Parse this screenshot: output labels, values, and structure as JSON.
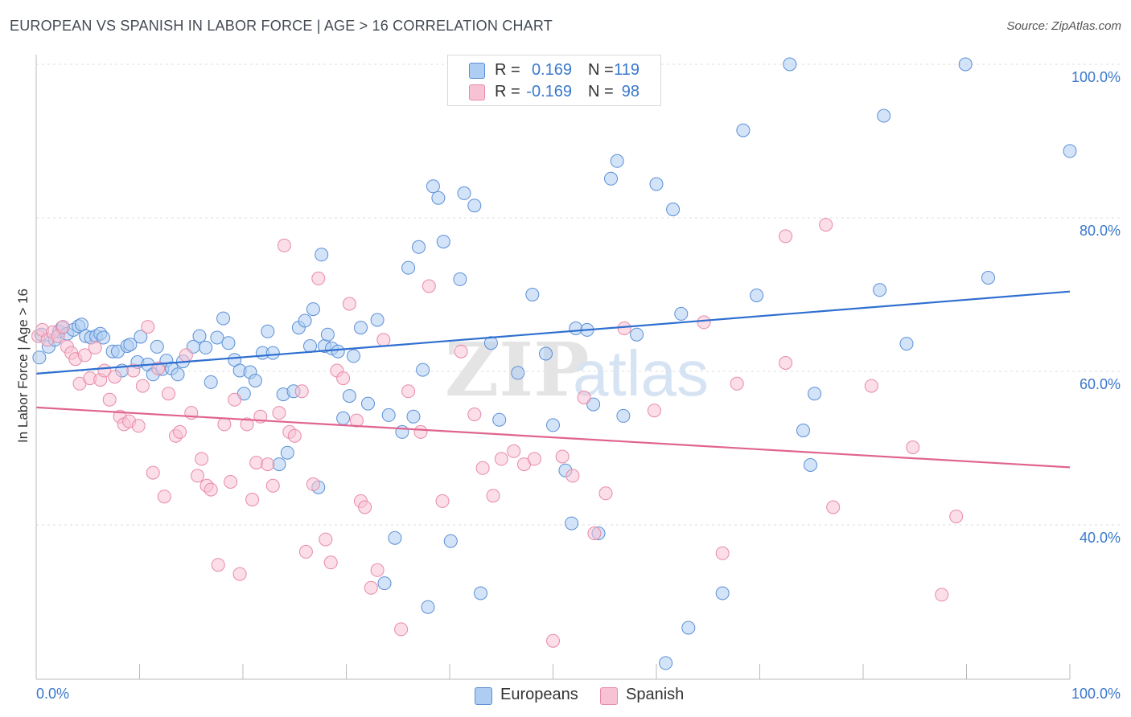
{
  "header": {
    "title": "EUROPEAN VS SPANISH IN LABOR FORCE | AGE > 16 CORRELATION CHART",
    "source": "Source: ZipAtlas.com"
  },
  "legend": {
    "europeans": {
      "r_label": "R =",
      "r_value": "0.169",
      "n_label": "N =",
      "n_value": "119"
    },
    "spanish": {
      "r_label": "R =",
      "r_value": "-0.169",
      "n_label": "N =",
      "n_value": "98"
    }
  },
  "colors": {
    "europeans_fill": "#aecdf2",
    "europeans_stroke": "#5b8fd6",
    "europeans_line": "#2f6fd0",
    "spanish_fill": "#f7c2d3",
    "spanish_stroke": "#e88aa8",
    "spanish_line": "#e0648f",
    "tick_label": "#3a78cc",
    "grid": "#dddddd"
  },
  "chart_data": {
    "type": "scatter",
    "title": "EUROPEAN VS SPANISH IN LABOR FORCE | AGE > 16 CORRELATION CHART",
    "xlabel": "",
    "ylabel": "In Labor Force | Age > 16",
    "xlim": [
      0,
      100
    ],
    "ylim": [
      20,
      102
    ],
    "x_tick_labels": [
      "0.0%",
      "100.0%"
    ],
    "y_ticks": [
      40,
      60,
      80,
      100
    ],
    "y_tick_labels": [
      "40.0%",
      "60.0%",
      "80.0%",
      "100.0%"
    ],
    "grid": true,
    "legend_position": "top-center",
    "watermark": "ZIPatlas",
    "series": [
      {
        "name": "Europeans",
        "trend": {
          "x": [
            0,
            100
          ],
          "y": [
            59.7,
            70.4
          ]
        },
        "points": [
          [
            0.3,
            61.8
          ],
          [
            0.5,
            64.8
          ],
          [
            1.2,
            63.2
          ],
          [
            1.8,
            64.1
          ],
          [
            2.2,
            65.2
          ],
          [
            2.5,
            65.7
          ],
          [
            3.0,
            64.9
          ],
          [
            3.6,
            65.4
          ],
          [
            4.1,
            65.9
          ],
          [
            4.4,
            66.1
          ],
          [
            4.8,
            64.6
          ],
          [
            5.3,
            64.4
          ],
          [
            5.8,
            64.6
          ],
          [
            6.2,
            64.9
          ],
          [
            6.5,
            64.4
          ],
          [
            7.4,
            62.6
          ],
          [
            7.9,
            62.6
          ],
          [
            8.3,
            60.1
          ],
          [
            8.8,
            63.3
          ],
          [
            9.1,
            63.5
          ],
          [
            9.8,
            61.2
          ],
          [
            10.1,
            64.5
          ],
          [
            10.8,
            60.9
          ],
          [
            11.3,
            59.6
          ],
          [
            11.7,
            63.2
          ],
          [
            12.2,
            60.3
          ],
          [
            12.6,
            61.4
          ],
          [
            13.1,
            60.4
          ],
          [
            13.7,
            59.6
          ],
          [
            14.2,
            61.3
          ],
          [
            15.2,
            63.2
          ],
          [
            15.8,
            64.6
          ],
          [
            16.4,
            63.1
          ],
          [
            16.9,
            58.6
          ],
          [
            17.5,
            64.4
          ],
          [
            18.1,
            66.9
          ],
          [
            18.6,
            63.7
          ],
          [
            19.2,
            61.5
          ],
          [
            19.7,
            60.1
          ],
          [
            20.1,
            57.1
          ],
          [
            20.7,
            59.9
          ],
          [
            21.2,
            58.8
          ],
          [
            21.9,
            62.4
          ],
          [
            22.4,
            65.2
          ],
          [
            22.9,
            62.4
          ],
          [
            23.5,
            47.9
          ],
          [
            23.9,
            57.0
          ],
          [
            24.3,
            49.4
          ],
          [
            24.9,
            57.4
          ],
          [
            25.4,
            65.7
          ],
          [
            26.0,
            66.6
          ],
          [
            26.5,
            63.3
          ],
          [
            26.8,
            68.1
          ],
          [
            27.3,
            44.9
          ],
          [
            27.6,
            75.2
          ],
          [
            27.9,
            63.3
          ],
          [
            28.2,
            64.8
          ],
          [
            28.6,
            63.0
          ],
          [
            29.2,
            62.6
          ],
          [
            29.7,
            53.9
          ],
          [
            30.3,
            56.8
          ],
          [
            30.7,
            62.0
          ],
          [
            31.4,
            65.7
          ],
          [
            32.1,
            55.8
          ],
          [
            33.0,
            66.7
          ],
          [
            33.7,
            32.4
          ],
          [
            34.1,
            54.3
          ],
          [
            34.7,
            38.3
          ],
          [
            35.4,
            52.1
          ],
          [
            36.0,
            73.5
          ],
          [
            36.5,
            54.1
          ],
          [
            37.0,
            76.2
          ],
          [
            37.4,
            60.2
          ],
          [
            37.9,
            29.3
          ],
          [
            38.4,
            84.1
          ],
          [
            38.9,
            82.6
          ],
          [
            39.4,
            76.9
          ],
          [
            40.1,
            37.9
          ],
          [
            41.0,
            72.0
          ],
          [
            41.4,
            83.2
          ],
          [
            42.4,
            81.6
          ],
          [
            43.0,
            31.1
          ],
          [
            44.0,
            63.7
          ],
          [
            44.8,
            53.7
          ],
          [
            46.6,
            59.8
          ],
          [
            48.0,
            70.0
          ],
          [
            49.3,
            62.3
          ],
          [
            50.0,
            53.0
          ],
          [
            51.2,
            47.1
          ],
          [
            51.8,
            40.2
          ],
          [
            52.2,
            65.6
          ],
          [
            53.3,
            65.4
          ],
          [
            53.9,
            55.7
          ],
          [
            54.4,
            38.9
          ],
          [
            55.6,
            85.1
          ],
          [
            56.2,
            87.4
          ],
          [
            56.8,
            54.2
          ],
          [
            58.1,
            64.8
          ],
          [
            60.0,
            84.4
          ],
          [
            60.9,
            22.0
          ],
          [
            61.6,
            81.1
          ],
          [
            62.4,
            67.5
          ],
          [
            63.1,
            26.6
          ],
          [
            66.4,
            31.1
          ],
          [
            68.4,
            91.4
          ],
          [
            69.7,
            69.9
          ],
          [
            72.9,
            100.0
          ],
          [
            74.2,
            52.3
          ],
          [
            74.9,
            47.8
          ],
          [
            75.3,
            57.1
          ],
          [
            81.6,
            70.6
          ],
          [
            84.2,
            63.6
          ],
          [
            82.0,
            93.3
          ],
          [
            89.9,
            100.0
          ],
          [
            92.1,
            72.2
          ],
          [
            100.0,
            88.7
          ],
          [
            45.3,
            100.0
          ],
          [
            47.3,
            100.0
          ],
          [
            48.5,
            100.0
          ]
        ]
      },
      {
        "name": "Spanish",
        "trend": {
          "x": [
            0,
            100
          ],
          "y": [
            55.3,
            47.5
          ]
        },
        "points": [
          [
            0.2,
            64.6
          ],
          [
            0.6,
            65.4
          ],
          [
            1.1,
            64.1
          ],
          [
            1.6,
            65.1
          ],
          [
            2.1,
            64.6
          ],
          [
            2.6,
            65.8
          ],
          [
            3.0,
            63.2
          ],
          [
            3.4,
            62.4
          ],
          [
            3.8,
            61.6
          ],
          [
            4.2,
            58.4
          ],
          [
            4.7,
            62.1
          ],
          [
            5.2,
            59.1
          ],
          [
            5.7,
            63.1
          ],
          [
            6.2,
            58.9
          ],
          [
            6.6,
            60.1
          ],
          [
            7.1,
            56.3
          ],
          [
            7.6,
            59.3
          ],
          [
            8.1,
            54.1
          ],
          [
            8.5,
            53.1
          ],
          [
            9.0,
            53.5
          ],
          [
            9.4,
            60.1
          ],
          [
            9.9,
            52.9
          ],
          [
            10.3,
            58.1
          ],
          [
            10.8,
            65.8
          ],
          [
            11.3,
            46.8
          ],
          [
            11.8,
            60.4
          ],
          [
            12.4,
            43.7
          ],
          [
            12.8,
            57.1
          ],
          [
            13.5,
            51.6
          ],
          [
            13.9,
            52.1
          ],
          [
            14.5,
            62.1
          ],
          [
            15.0,
            54.6
          ],
          [
            15.6,
            46.4
          ],
          [
            16.0,
            48.6
          ],
          [
            16.5,
            45.1
          ],
          [
            16.9,
            44.6
          ],
          [
            17.6,
            34.8
          ],
          [
            18.2,
            53.1
          ],
          [
            18.8,
            45.6
          ],
          [
            19.2,
            56.3
          ],
          [
            19.7,
            33.6
          ],
          [
            20.4,
            53.1
          ],
          [
            20.9,
            43.3
          ],
          [
            21.3,
            48.1
          ],
          [
            21.7,
            54.1
          ],
          [
            22.4,
            47.9
          ],
          [
            22.9,
            45.1
          ],
          [
            23.5,
            54.6
          ],
          [
            24.0,
            76.4
          ],
          [
            24.5,
            52.1
          ],
          [
            25.0,
            51.6
          ],
          [
            25.7,
            57.4
          ],
          [
            26.1,
            36.5
          ],
          [
            26.8,
            45.3
          ],
          [
            27.3,
            72.1
          ],
          [
            28.0,
            38.1
          ],
          [
            28.5,
            35.1
          ],
          [
            29.1,
            60.1
          ],
          [
            29.7,
            59.1
          ],
          [
            30.3,
            68.8
          ],
          [
            31.0,
            53.6
          ],
          [
            31.4,
            43.1
          ],
          [
            31.8,
            42.3
          ],
          [
            32.4,
            31.8
          ],
          [
            33.0,
            34.1
          ],
          [
            33.6,
            64.1
          ],
          [
            35.3,
            26.4
          ],
          [
            36.0,
            57.4
          ],
          [
            37.2,
            52.1
          ],
          [
            38.0,
            71.1
          ],
          [
            39.3,
            43.1
          ],
          [
            41.1,
            62.6
          ],
          [
            42.4,
            54.4
          ],
          [
            43.2,
            47.4
          ],
          [
            44.2,
            43.8
          ],
          [
            45.0,
            48.6
          ],
          [
            46.2,
            49.6
          ],
          [
            47.2,
            47.9
          ],
          [
            48.2,
            48.6
          ],
          [
            50.0,
            24.9
          ],
          [
            50.9,
            48.9
          ],
          [
            51.9,
            46.4
          ],
          [
            53.0,
            56.6
          ],
          [
            54.0,
            38.9
          ],
          [
            55.1,
            44.1
          ],
          [
            56.9,
            65.6
          ],
          [
            59.8,
            54.9
          ],
          [
            64.6,
            66.4
          ],
          [
            66.4,
            36.3
          ],
          [
            67.8,
            58.4
          ],
          [
            72.5,
            61.1
          ],
          [
            72.5,
            77.6
          ],
          [
            76.4,
            79.1
          ],
          [
            77.1,
            42.3
          ],
          [
            80.8,
            58.1
          ],
          [
            84.8,
            50.1
          ],
          [
            87.6,
            30.9
          ],
          [
            89.0,
            41.1
          ]
        ]
      }
    ]
  },
  "bottom_legend": {
    "europeans_label": "Europeans",
    "spanish_label": "Spanish"
  }
}
